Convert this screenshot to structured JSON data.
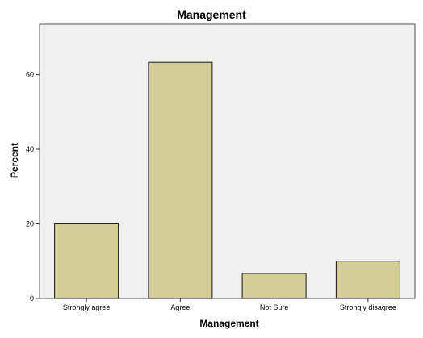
{
  "chart_data": {
    "type": "bar",
    "title": "Management",
    "xlabel": "Management",
    "ylabel": "Percent",
    "categories": [
      "Strongly agree",
      "Agree",
      "Not Sure",
      "Strongly disagree"
    ],
    "values": [
      20.0,
      63.3,
      6.7,
      10.0
    ],
    "ylim": [
      0,
      73.5
    ],
    "yticks": [
      0,
      20,
      40,
      60
    ],
    "grid": false,
    "colors": {
      "bar_fill": "#d3cd98",
      "bar_stroke": "#1a1a1a",
      "plot_background": "#f0f0f0",
      "page_background": "#ffffff"
    }
  }
}
